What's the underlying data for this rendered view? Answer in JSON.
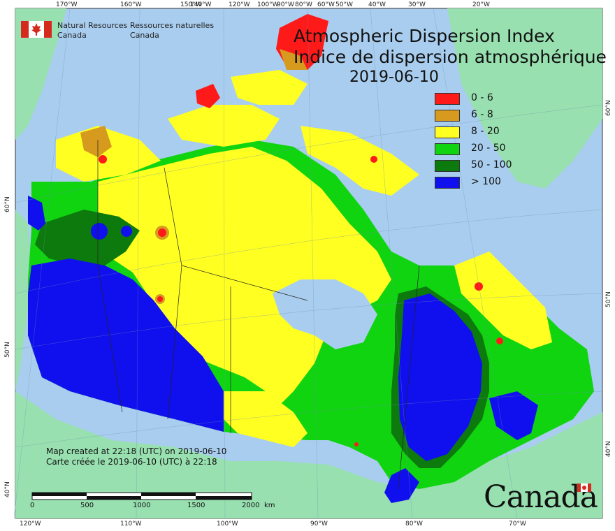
{
  "title": {
    "en": "Atmospheric Dispersion Index",
    "fr": "Indice de dispersion atmosphérique",
    "date": "2019-06-10"
  },
  "agency": {
    "en": [
      "Natural Resources",
      "Canada"
    ],
    "fr": [
      "Ressources naturelles",
      "Canada"
    ]
  },
  "legend": [
    {
      "label": "0 - 6",
      "color": "#ff1a1a"
    },
    {
      "label": "6 - 8",
      "color": "#d69a1e"
    },
    {
      "label": "8 - 20",
      "color": "#ffff22"
    },
    {
      "label": "20 - 50",
      "color": "#11d411"
    },
    {
      "label": "50 - 100",
      "color": "#0d7a0d"
    },
    {
      "label": "> 100",
      "color": "#1010ee"
    }
  ],
  "credits": {
    "en": "Map created at 22:18 (UTC) on 2019-06-10",
    "fr": "Carte créée le 2019-06-10 (UTC) à 22:18"
  },
  "scale_bar": {
    "labels": [
      "0",
      "500",
      "1000",
      "1500",
      "2000"
    ],
    "unit": "km"
  },
  "top_ticks": [
    "170°W",
    "160°W",
    "150°W",
    "140°W",
    "120°W",
    "100°W",
    "90°W",
    "80°W",
    "60°W",
    "50°W",
    "40°W",
    "30°W",
    "20°W"
  ],
  "bottom_ticks": [
    "120°W",
    "110°W",
    "100°W",
    "90°W",
    "80°W",
    "70°W"
  ],
  "left_ticks": [
    "60°N",
    "50°N",
    "40°N"
  ],
  "right_ticks": [
    "60°N",
    "50°N",
    "40°N"
  ],
  "wordmark": "Canada",
  "colors": {
    "ocean": "#a9cdee",
    "land": "#98e0b0",
    "frame": "#333333"
  }
}
